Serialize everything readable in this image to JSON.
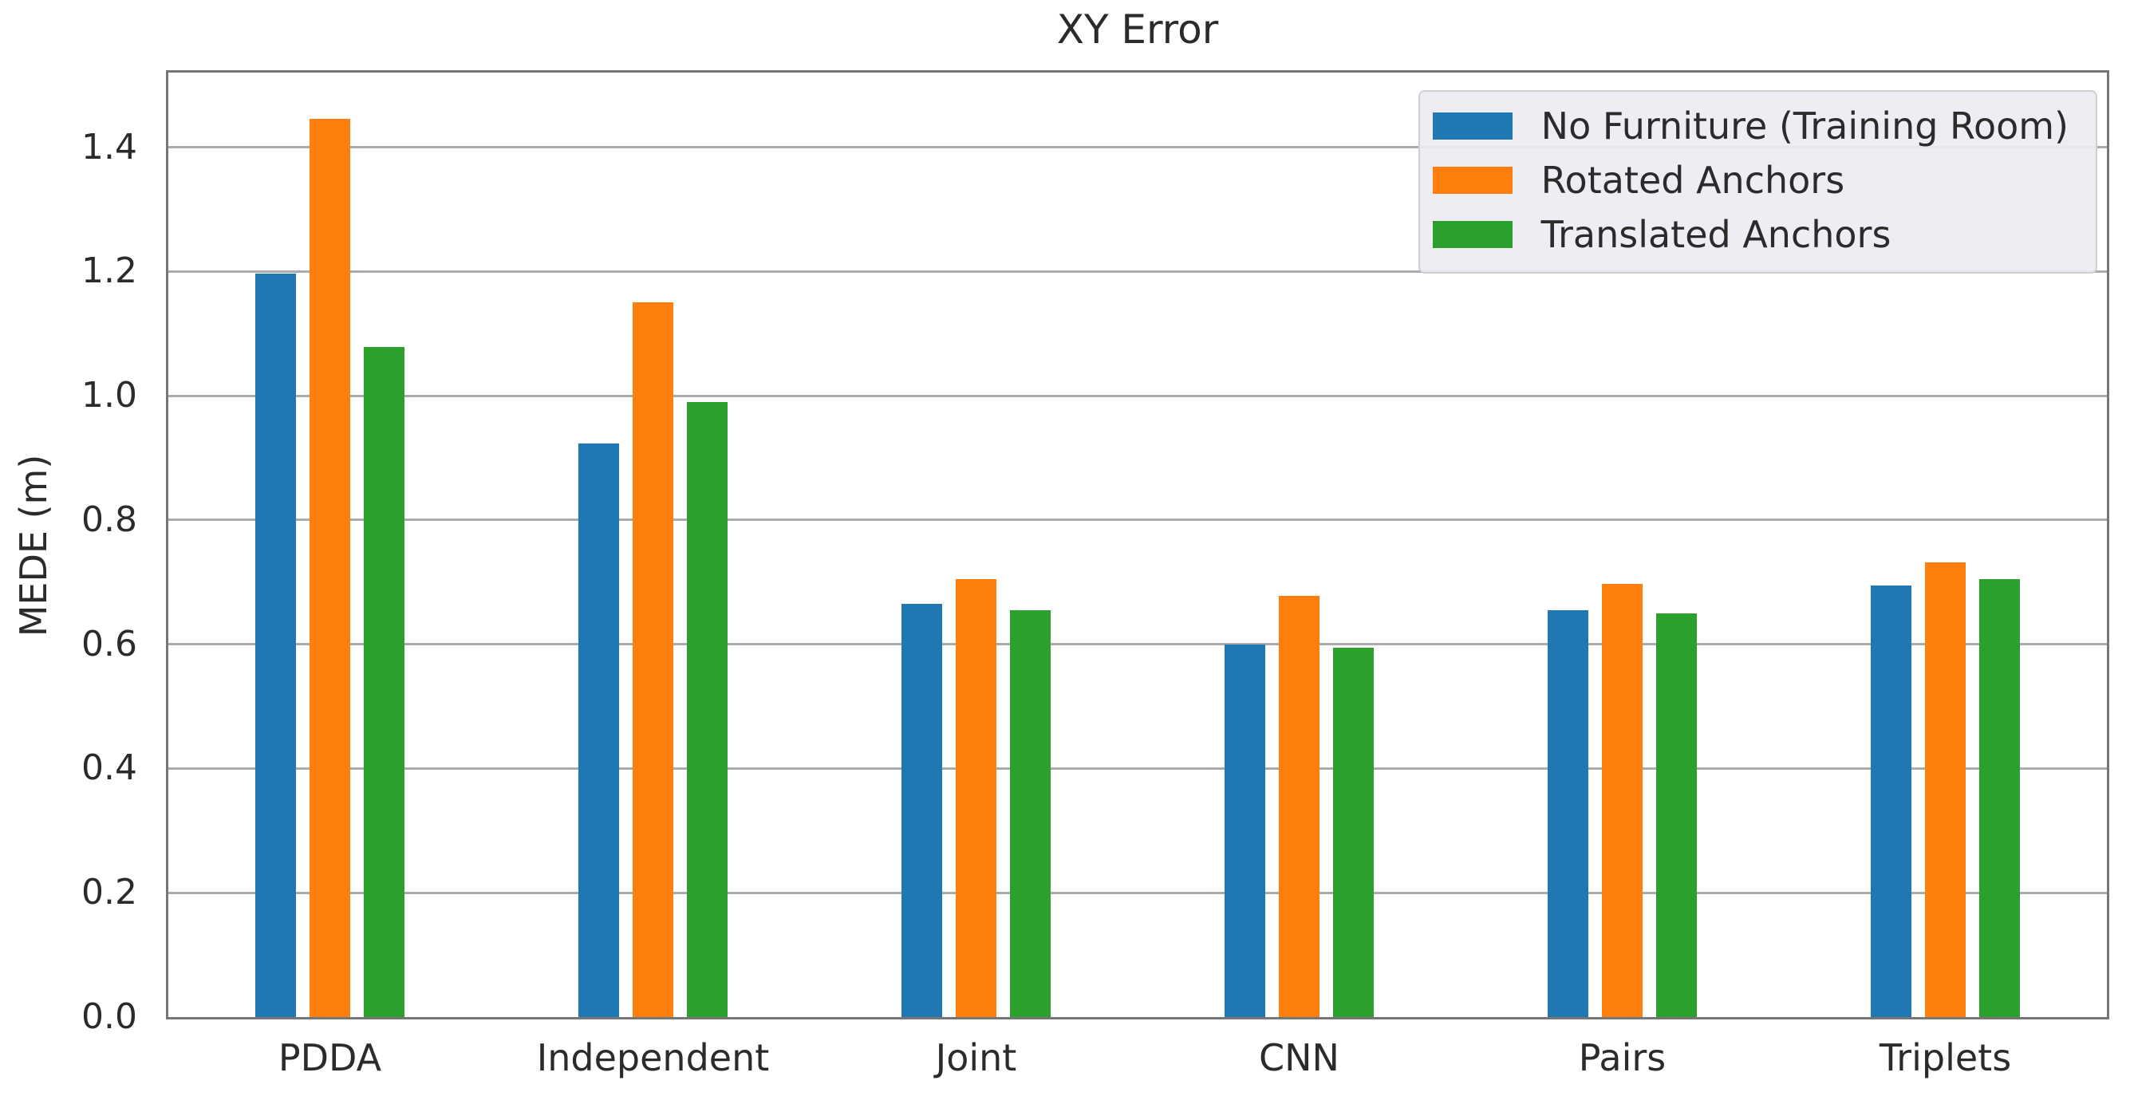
{
  "chart_data": {
    "type": "bar",
    "title": "XY Error",
    "xlabel": "",
    "ylabel": "MEDE (m)",
    "categories": [
      "PDDA",
      "Independent",
      "Joint",
      "CNN",
      "Pairs",
      "Triplets"
    ],
    "series": [
      {
        "name": "No Furniture (Training Room)",
        "color": "#1f77b4",
        "values": [
          1.197,
          0.923,
          0.665,
          0.6,
          0.655,
          0.695
        ]
      },
      {
        "name": "Rotated Anchors",
        "color": "#ff7f0e",
        "values": [
          1.445,
          1.15,
          0.705,
          0.678,
          0.697,
          0.732
        ]
      },
      {
        "name": "Translated Anchors",
        "color": "#2ca02c",
        "values": [
          1.078,
          0.99,
          0.655,
          0.595,
          0.65,
          0.705
        ]
      }
    ],
    "ylim": [
      0,
      1.52
    ],
    "yticks": [
      0.0,
      0.2,
      0.4,
      0.6,
      0.8,
      1.0,
      1.2,
      1.4
    ],
    "ytick_labels": [
      "0.0",
      "0.2",
      "0.4",
      "0.6",
      "0.8",
      "1.0",
      "1.2",
      "1.4"
    ],
    "grid": true,
    "legend_position": "upper right"
  },
  "style": {
    "grid_color": "#ababab",
    "spine_color": "#767676",
    "text_color": "#2b2b2b",
    "legend_background": "#ececf2",
    "legend_border": "#cfcfcf"
  }
}
